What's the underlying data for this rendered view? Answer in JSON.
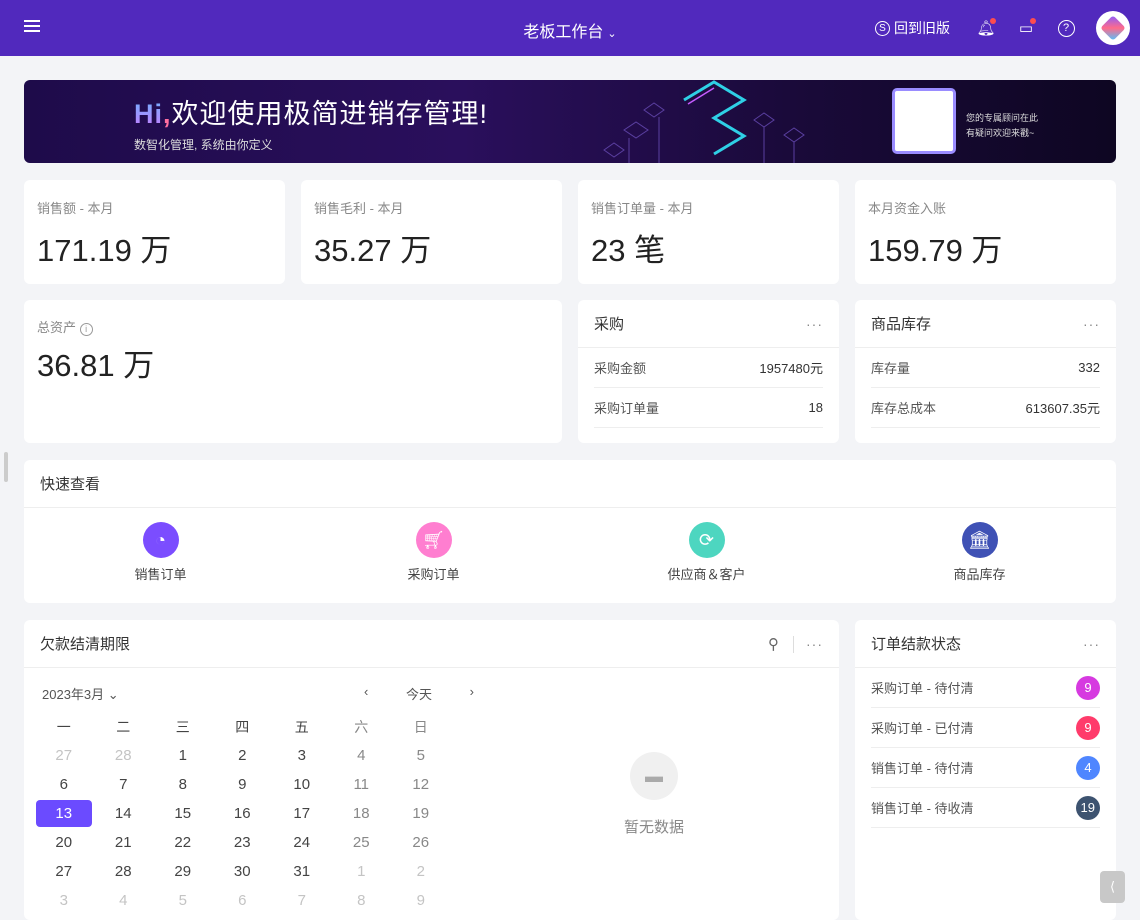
{
  "header": {
    "title": "老板工作台",
    "old_version": "回到旧版",
    "icons": [
      "menu-icon",
      "bell-icon",
      "inbox-icon",
      "help-icon"
    ]
  },
  "banner": {
    "hi": "Hi",
    "comma": ",",
    "headline": "欢迎使用极简进销存管理!",
    "subtitle": "数智化管理, 系统由你定义",
    "qr_line1": "您的专属顾问在此",
    "qr_line2": "有疑问欢迎来戳~"
  },
  "stats": [
    {
      "label": "销售额 - 本月",
      "value": "171.19 万"
    },
    {
      "label": "销售毛利 - 本月",
      "value": "35.27 万"
    },
    {
      "label": "销售订单量 - 本月",
      "value": "23 笔"
    },
    {
      "label": "本月资金入账",
      "value": "159.79 万"
    }
  ],
  "assets": {
    "label": "总资产",
    "value": "36.81 万"
  },
  "purchase": {
    "title": "采购",
    "rows": [
      {
        "k": "采购金额",
        "v": "1957480元"
      },
      {
        "k": "采购订单量",
        "v": "18"
      }
    ]
  },
  "inventory": {
    "title": "商品库存",
    "rows": [
      {
        "k": "库存量",
        "v": "332"
      },
      {
        "k": "库存总成本",
        "v": "613607.35元"
      }
    ]
  },
  "quick": {
    "title": "快速查看",
    "items": [
      {
        "label": "销售订单",
        "color": "#7b4dff",
        "icon": "pie-chart-icon"
      },
      {
        "label": "采购订单",
        "color": "#ff7ed0",
        "icon": "cart-icon"
      },
      {
        "label": "供应商＆客户",
        "color": "#4dd6c0",
        "icon": "refresh-icon"
      },
      {
        "label": "商品库存",
        "color": "#3f51b5",
        "icon": "bank-icon"
      }
    ]
  },
  "debt": {
    "title": "欠款结清期限",
    "month": "2023年3月",
    "today": "今天",
    "empty": "暂无数据",
    "weekdays": [
      "一",
      "二",
      "三",
      "四",
      "五",
      "六",
      "日"
    ],
    "selected": "13",
    "days": [
      [
        "27",
        "o"
      ],
      [
        "28",
        "o"
      ],
      [
        "1",
        ""
      ],
      [
        "2",
        ""
      ],
      [
        "3",
        ""
      ],
      [
        "4",
        "w"
      ],
      [
        "5",
        "w"
      ],
      [
        "6",
        ""
      ],
      [
        "7",
        ""
      ],
      [
        "8",
        ""
      ],
      [
        "9",
        ""
      ],
      [
        "10",
        ""
      ],
      [
        "11",
        "w"
      ],
      [
        "12",
        "w"
      ],
      [
        "13",
        ""
      ],
      [
        "14",
        ""
      ],
      [
        "15",
        ""
      ],
      [
        "16",
        ""
      ],
      [
        "17",
        ""
      ],
      [
        "18",
        "w"
      ],
      [
        "19",
        "w"
      ],
      [
        "20",
        ""
      ],
      [
        "21",
        ""
      ],
      [
        "22",
        ""
      ],
      [
        "23",
        ""
      ],
      [
        "24",
        ""
      ],
      [
        "25",
        "w"
      ],
      [
        "26",
        "w"
      ],
      [
        "27",
        ""
      ],
      [
        "28",
        ""
      ],
      [
        "29",
        ""
      ],
      [
        "30",
        ""
      ],
      [
        "31",
        ""
      ],
      [
        "1",
        "o"
      ],
      [
        "2",
        "o"
      ],
      [
        "3",
        "o"
      ],
      [
        "4",
        "o"
      ],
      [
        "5",
        "o"
      ],
      [
        "6",
        "o"
      ],
      [
        "7",
        "o"
      ],
      [
        "8",
        "o"
      ],
      [
        "9",
        "o"
      ]
    ]
  },
  "order_status": {
    "title": "订单结款状态",
    "rows": [
      {
        "label": "采购订单 - 待付清",
        "count": "9",
        "color": "#d63ae0"
      },
      {
        "label": "采购订单 - 已付清",
        "count": "9",
        "color": "#ff3b6b"
      },
      {
        "label": "销售订单 - 待付清",
        "count": "4",
        "color": "#4f86ff"
      },
      {
        "label": "销售订单 - 待收清",
        "count": "19",
        "color": "#3d5370"
      }
    ]
  }
}
